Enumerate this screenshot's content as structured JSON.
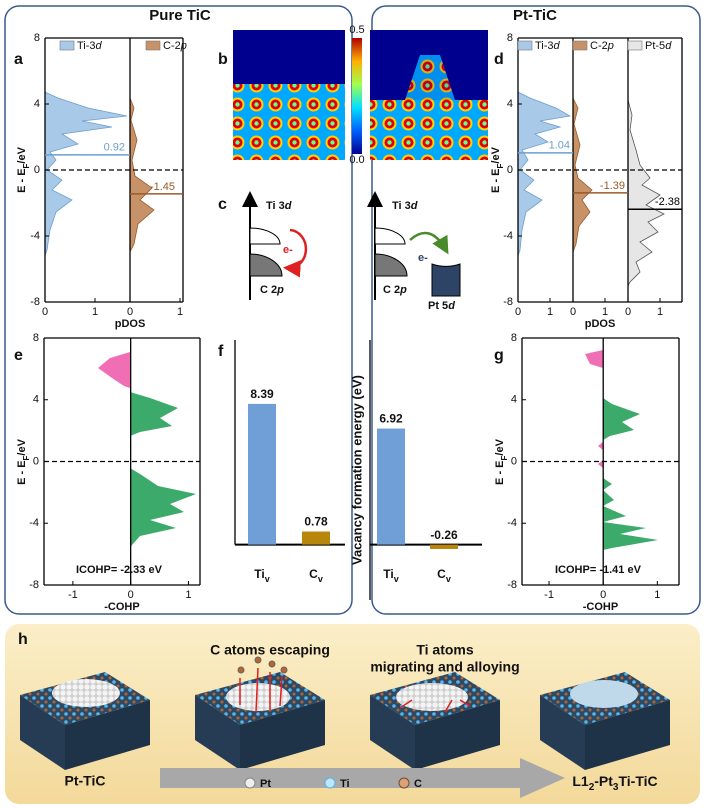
{
  "left_title": "Pure TiC",
  "right_title": "Pt-TiC",
  "panel_a": {
    "label": "a",
    "ylim": [
      -8,
      8
    ],
    "yticks": [
      8,
      4,
      0,
      -4,
      -8
    ],
    "ylabel": {
      "main": "E - E",
      "sub": "F",
      "unit": "/eV"
    },
    "legend": [
      {
        "main": "Ti-3",
        "italic": "d"
      },
      {
        "main": "C-2",
        "italic": "p"
      }
    ],
    "xticks_left": [
      0,
      1
    ],
    "xticks_right": [
      0,
      1
    ],
    "xlabel": "pDOS",
    "levels": [
      0.92,
      -1.45
    ]
  },
  "panel_b": {
    "label": "b",
    "colorbar_max": "0.5",
    "colorbar_min": "0.0"
  },
  "panel_c": {
    "label": "c",
    "left": {
      "top": {
        "main": "Ti 3",
        "italic": "d"
      },
      "bottom": {
        "main": "C 2",
        "italic": "p"
      },
      "electron": "e-"
    },
    "right": {
      "top": {
        "main": "Ti 3",
        "italic": "d"
      },
      "bottom": {
        "main": "C 2",
        "italic": "p"
      },
      "extra": {
        "main": "Pt 5",
        "italic": "d"
      },
      "electron": "e-"
    }
  },
  "panel_d": {
    "label": "d",
    "ylim": [
      -8,
      8
    ],
    "yticks": [
      8,
      4,
      0,
      -4,
      -8
    ],
    "ylabel": {
      "main": "E - E",
      "sub": "F",
      "unit": "/eV"
    },
    "legend": [
      {
        "main": "Ti-3",
        "italic": "d"
      },
      {
        "main": "C-2",
        "italic": "p"
      },
      {
        "main": "Pt-5",
        "italic": "d"
      }
    ],
    "xticks_1": [
      0,
      1
    ],
    "xticks_2": [
      0,
      1
    ],
    "xticks_3": [
      0,
      1
    ],
    "xlabel": "pDOS",
    "levels": [
      1.04,
      -1.39,
      -2.38
    ]
  },
  "panel_e": {
    "label": "e",
    "ylim": [
      -8,
      8
    ],
    "yticks": [
      8,
      4,
      0,
      -4,
      -8
    ],
    "xlim": [
      -1.5,
      1.2
    ],
    "xticks": [
      -1,
      0,
      1
    ],
    "ylabel": {
      "main": "E - E",
      "sub": "F",
      "unit": "/eV"
    },
    "xlabel": "-COHP",
    "icohp": "ICOHP= -2.33 eV"
  },
  "panel_f": {
    "label": "f",
    "ylim": [
      -0.5,
      12.2
    ],
    "ylabel": "Vacancy formation energy (eV)",
    "groups": [
      {
        "categories": [
          {
            "main": "Ti",
            "sub": "v"
          },
          {
            "main": "C",
            "sub": "v"
          }
        ],
        "values": [
          8.39,
          0.78
        ]
      },
      {
        "categories": [
          {
            "main": "Ti",
            "sub": "v"
          },
          {
            "main": "C",
            "sub": "v"
          }
        ],
        "values": [
          6.92,
          -0.26
        ]
      }
    ],
    "colors": [
      "#6f9fd6",
      "#b8860b"
    ]
  },
  "panel_g": {
    "label": "g",
    "ylim": [
      -8,
      8
    ],
    "yticks": [
      8,
      4,
      0,
      -4,
      -8
    ],
    "xlim": [
      -1.5,
      1.4
    ],
    "xticks": [
      -1,
      0,
      1
    ],
    "ylabel": {
      "main": "E - E",
      "sub": "F",
      "unit": "/eV"
    },
    "xlabel": "-COHP",
    "icohp": "ICOHP= -1.41 eV"
  },
  "panel_h": {
    "label": "h",
    "step1": "C atoms escaping",
    "step2": [
      "Ti atoms",
      "migrating and alloying"
    ],
    "start": "Pt-TiC",
    "end": {
      "a": "L1",
      "b": "2",
      "c": "-Pt",
      "d": "3",
      "e": "Ti-TiC"
    },
    "legend": [
      "Pt",
      "Ti",
      "C"
    ]
  }
}
